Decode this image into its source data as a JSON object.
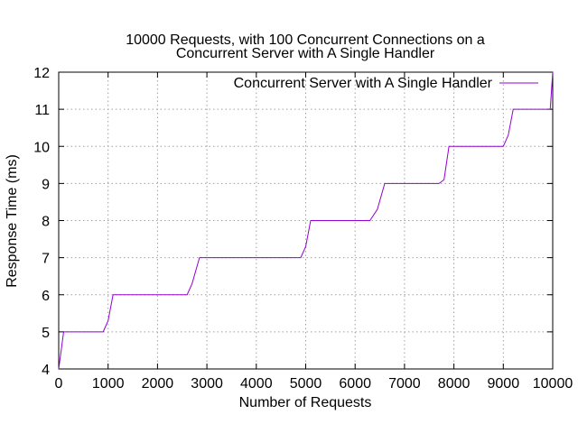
{
  "chart_data": {
    "type": "line",
    "title": "10000 Requests, with 100 Concurrent Connections on a\nConcurrent Server with A Single Handler",
    "xlabel": "Number of Requests",
    "ylabel": "Response Time (ms)",
    "xlim": [
      0,
      10000
    ],
    "ylim": [
      4,
      12
    ],
    "xticks": [
      0,
      1000,
      2000,
      3000,
      4000,
      5000,
      6000,
      7000,
      8000,
      9000,
      10000
    ],
    "yticks": [
      4,
      5,
      6,
      7,
      8,
      9,
      10,
      11,
      12
    ],
    "grid": true,
    "legend_position": "top-right",
    "series": [
      {
        "name": "Concurrent Server with A Single Handler",
        "color": "#9400d3",
        "x": [
          0,
          100,
          900,
          1000,
          1100,
          2600,
          2700,
          2850,
          4900,
          5000,
          5100,
          6300,
          6450,
          6600,
          7700,
          7800,
          7900,
          9000,
          9100,
          9200,
          9950,
          10000
        ],
        "y": [
          4,
          5,
          5,
          5.3,
          6,
          6,
          6.3,
          7,
          7,
          7.3,
          8,
          8,
          8.3,
          9,
          9,
          9.1,
          10,
          10,
          10.3,
          11,
          11,
          12
        ]
      }
    ]
  }
}
